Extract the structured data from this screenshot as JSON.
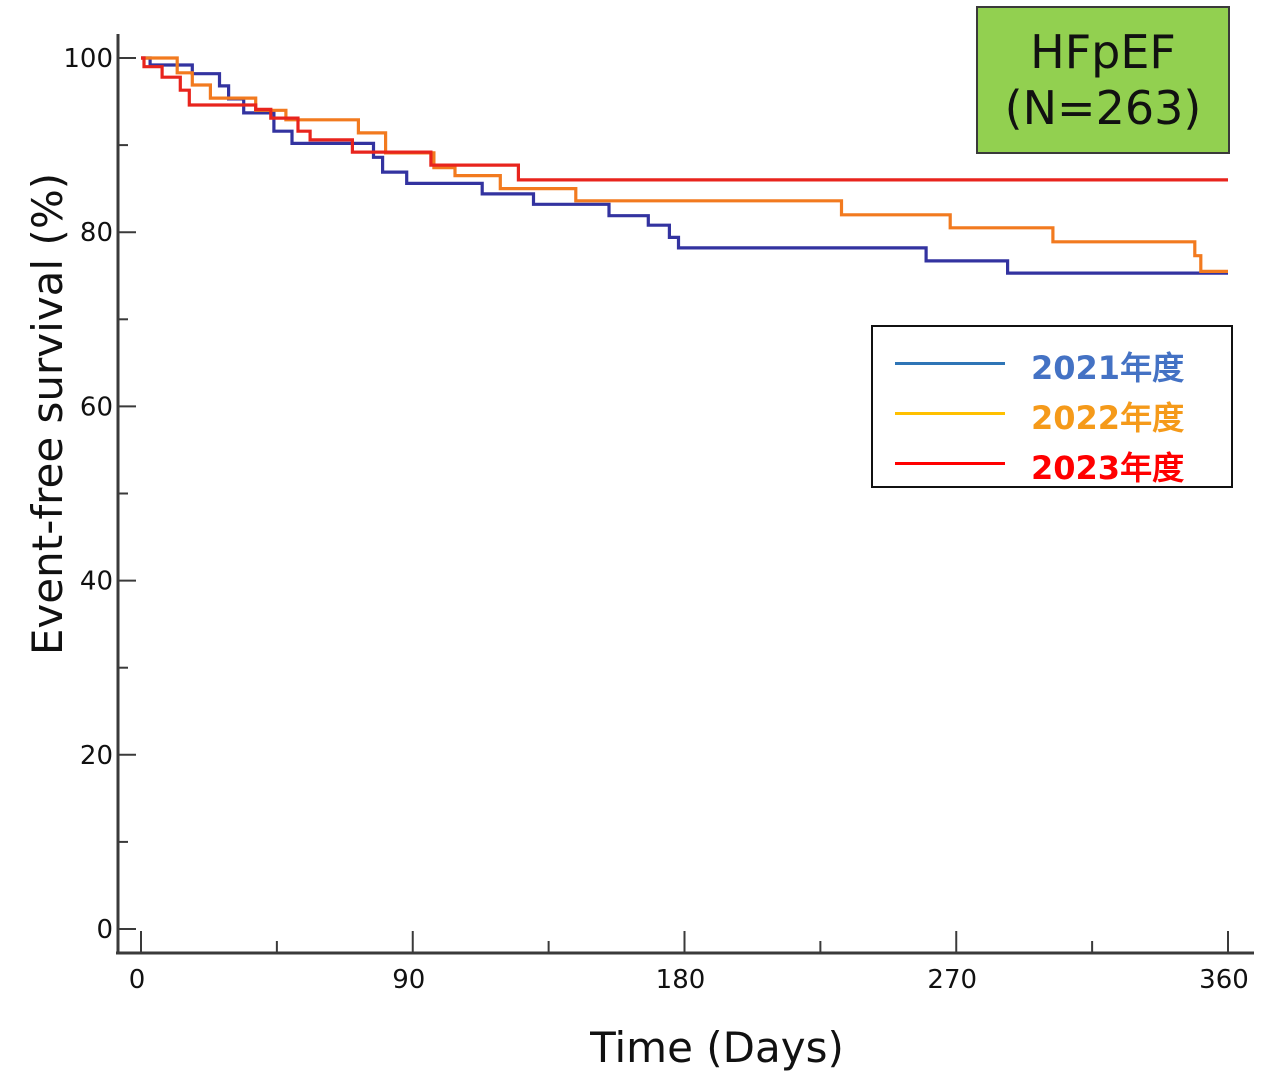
{
  "chart_data": {
    "type": "line",
    "subtitle_lines": [
      "HFpEF",
      "(N=263)"
    ],
    "xlabel": "Time (Days)",
    "ylabel": "Event-free survival (%)",
    "xlim": [
      0,
      360
    ],
    "ylim": [
      0,
      100
    ],
    "x_ticks": [
      0,
      90,
      180,
      270,
      360
    ],
    "y_ticks": [
      0,
      20,
      40,
      60,
      80,
      100
    ],
    "grid": false,
    "legend_position": "right-upper",
    "step": true,
    "series": [
      {
        "name": "2021年度",
        "color": "#3333a0",
        "legend_color": "#2e75b6",
        "label_color": "#4472c4",
        "points": [
          [
            0,
            100
          ],
          [
            3,
            99.2
          ],
          [
            15,
            99.2
          ],
          [
            17,
            98.2
          ],
          [
            24,
            98.2
          ],
          [
            26,
            96.8
          ],
          [
            29,
            95.3
          ],
          [
            34,
            93.7
          ],
          [
            42,
            93.7
          ],
          [
            44,
            91.6
          ],
          [
            50,
            90.2
          ],
          [
            75,
            90.2
          ],
          [
            77,
            88.6
          ],
          [
            80,
            86.9
          ],
          [
            85,
            86.9
          ],
          [
            88,
            85.6
          ],
          [
            110,
            85.6
          ],
          [
            113,
            84.4
          ],
          [
            128,
            84.4
          ],
          [
            130,
            83.2
          ],
          [
            152,
            83.2
          ],
          [
            155,
            81.9
          ],
          [
            166,
            81.9
          ],
          [
            168,
            80.8
          ],
          [
            173,
            80.8
          ],
          [
            175,
            79.4
          ],
          [
            178,
            78.2
          ],
          [
            258,
            78.2
          ],
          [
            260,
            76.7
          ],
          [
            285,
            76.7
          ],
          [
            287,
            75.3
          ],
          [
            360,
            75.3
          ]
        ]
      },
      {
        "name": "2022年度",
        "color": "#f27a1f",
        "legend_color": "#ffc000",
        "label_color": "#f59a1a",
        "points": [
          [
            0,
            100
          ],
          [
            10,
            100
          ],
          [
            12,
            98.3
          ],
          [
            17,
            96.9
          ],
          [
            23,
            95.4
          ],
          [
            35,
            95.4
          ],
          [
            38,
            94.0
          ],
          [
            45,
            94.0
          ],
          [
            48,
            92.9
          ],
          [
            70,
            92.9
          ],
          [
            72,
            91.4
          ],
          [
            79,
            91.4
          ],
          [
            81,
            89.1
          ],
          [
            94,
            89.1
          ],
          [
            97,
            87.4
          ],
          [
            104,
            86.5
          ],
          [
            116,
            86.5
          ],
          [
            119,
            85.0
          ],
          [
            142,
            85.0
          ],
          [
            144,
            83.6
          ],
          [
            230,
            83.6
          ],
          [
            232,
            82.0
          ],
          [
            266,
            82.0
          ],
          [
            268,
            80.5
          ],
          [
            300,
            80.5
          ],
          [
            302,
            78.9
          ],
          [
            346,
            78.9
          ],
          [
            349,
            77.3
          ],
          [
            351,
            75.5
          ],
          [
            360,
            75.5
          ]
        ]
      },
      {
        "name": "2023年度",
        "color": "#e8241d",
        "legend_color": "#ff0000",
        "label_color": "#ff0000",
        "points": [
          [
            0,
            100
          ],
          [
            1,
            99.0
          ],
          [
            6,
            99.0
          ],
          [
            7,
            97.8
          ],
          [
            13,
            96.3
          ],
          [
            16,
            94.6
          ],
          [
            33,
            94.6
          ],
          [
            38,
            94.1
          ],
          [
            43,
            93.1
          ],
          [
            52,
            91.6
          ],
          [
            56,
            90.6
          ],
          [
            70,
            89.2
          ],
          [
            94,
            89.2
          ],
          [
            96,
            87.7
          ],
          [
            124,
            87.7
          ],
          [
            125,
            86.0
          ],
          [
            360,
            86.0
          ]
        ]
      }
    ]
  }
}
